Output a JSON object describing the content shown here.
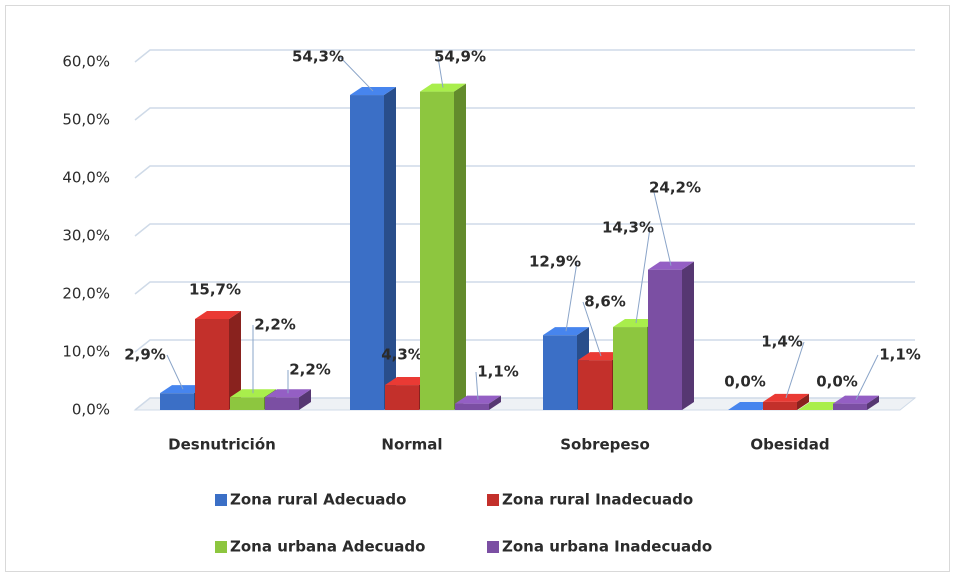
{
  "chart_data": {
    "type": "bar3d",
    "categories": [
      "Desnutrición",
      "Normal",
      "Sobrepeso",
      "Obesidad"
    ],
    "series": [
      {
        "name": "Zona rural Adecuado",
        "color": "#3b6fc6",
        "values": [
          2.9,
          54.3,
          12.9,
          0.0
        ],
        "value_labels": [
          "2,9%",
          "54,3%",
          "12,9%",
          "0,0%"
        ]
      },
      {
        "name": "Zona rural Inadecuado",
        "color": "#c3302b",
        "values": [
          15.7,
          4.3,
          8.6,
          1.4
        ],
        "value_labels": [
          "15,7%",
          "4,3%",
          "8,6%",
          "1,4%"
        ]
      },
      {
        "name": "Zona urbana Adecuado",
        "color": "#8dc63f",
        "values": [
          2.2,
          54.9,
          14.3,
          0.0
        ],
        "value_labels": [
          "2,2%",
          "54,9%",
          "14,3%",
          "0,0%"
        ]
      },
      {
        "name": "Zona urbana Inadecuado",
        "color": "#7b4fa3",
        "values": [
          2.2,
          1.1,
          24.2,
          1.1
        ],
        "value_labels": [
          "2,2%",
          "1,1%",
          "24,2%",
          "1,1%"
        ]
      }
    ],
    "ylim": [
      0,
      60
    ],
    "yticks": [
      {
        "value": 0,
        "label": "0,0%"
      },
      {
        "value": 10,
        "label": "10,0%"
      },
      {
        "value": 20,
        "label": "20,0%"
      },
      {
        "value": 30,
        "label": "30,0%"
      },
      {
        "value": 40,
        "label": "40,0%"
      },
      {
        "value": 50,
        "label": "50,0%"
      },
      {
        "value": 60,
        "label": "60,0%"
      }
    ],
    "grid": true,
    "legend": "bottom"
  }
}
